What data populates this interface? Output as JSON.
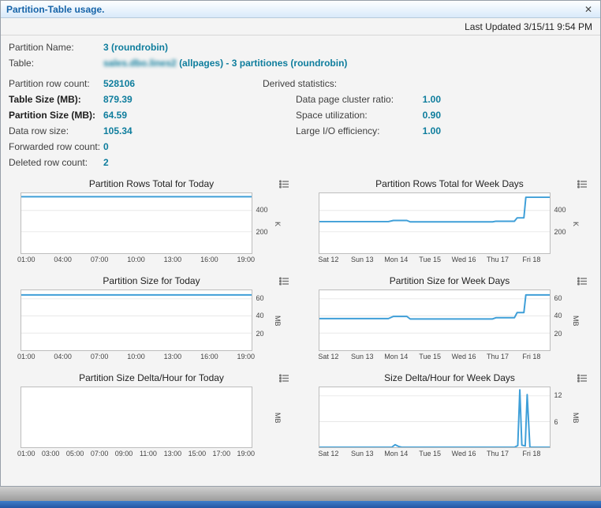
{
  "window": {
    "title": "Partition-Table usage.",
    "close": "✕",
    "last_updated": "Last Updated 3/15/11 9:54 PM"
  },
  "colors": {
    "title_blue": "#1563a8",
    "value_teal": "#0e7d9d",
    "chart_line": "#3f9fd8"
  },
  "icons": {
    "close": "x-close",
    "chart_menu": "list-menu"
  },
  "fields": {
    "partition_name": {
      "label": "Partition Name:",
      "value": "3 (roundrobin)"
    },
    "table": {
      "label": "Table:",
      "value_obscured": "sales.dbo.lines2",
      "value_rest": "(allpages) - 3 partitiones (roundrobin)"
    },
    "partition_row_count": {
      "label": "Partition row count:",
      "value": "528106"
    },
    "table_size": {
      "label": "Table Size (MB):",
      "value": "879.39"
    },
    "partition_size": {
      "label": "Partition Size (MB):",
      "value": "64.59"
    },
    "data_row_size": {
      "label": "Data row size:",
      "value": "105.34"
    },
    "forwarded_row_count": {
      "label": "Forwarded row count:",
      "value": "0"
    },
    "deleted_row_count": {
      "label": "Deleted row count:",
      "value": "2"
    }
  },
  "derived": {
    "heading": "Derived statistics:",
    "items": [
      {
        "label": "Data page cluster ratio:",
        "value": "1.00"
      },
      {
        "label": "Space utilization:",
        "value": "0.90"
      },
      {
        "label": "Large I/O efficiency:",
        "value": "1.00"
      }
    ]
  },
  "chart_data": [
    {
      "type": "line",
      "title": "Partition Rows Total for Today",
      "unit": "K",
      "xlim": [
        0.5,
        19.5
      ],
      "ylim": [
        0,
        560
      ],
      "yticks": [
        200,
        400
      ],
      "xticks": {
        "values": [
          1,
          4,
          7,
          10,
          13,
          16,
          19
        ],
        "labels": [
          "01:00",
          "04:00",
          "07:00",
          "10:00",
          "13:00",
          "16:00",
          "19:00"
        ]
      },
      "series": [
        {
          "name": "partition_rows_thousands",
          "points": [
            [
              0.5,
              528
            ],
            [
              19.5,
              528
            ]
          ]
        }
      ]
    },
    {
      "type": "line",
      "title": "Partition Rows Total for Week Days",
      "unit": "K",
      "xlim": [
        -0.3,
        6.55
      ],
      "ylim": [
        0,
        560
      ],
      "yticks": [
        200,
        400
      ],
      "xticks": {
        "values": [
          0,
          1,
          2,
          3,
          4,
          5,
          6
        ],
        "labels": [
          "Sat 12",
          "Sun 13",
          "Mon 14",
          "Tue 15",
          "Wed 16",
          "Thu 17",
          "Fri 18"
        ]
      },
      "series": [
        {
          "name": "partition_rows_thousands",
          "points": [
            [
              -0.3,
              295
            ],
            [
              1.75,
              295
            ],
            [
              1.9,
              306
            ],
            [
              2.3,
              306
            ],
            [
              2.4,
              293
            ],
            [
              4.85,
              293
            ],
            [
              4.95,
              299
            ],
            [
              5.5,
              299
            ],
            [
              5.58,
              330
            ],
            [
              5.78,
              330
            ],
            [
              5.84,
              523
            ],
            [
              6.55,
              523
            ]
          ]
        }
      ]
    },
    {
      "type": "line",
      "title": "Partition Size for Today",
      "unit": "MB",
      "xlim": [
        0.5,
        19.5
      ],
      "ylim": [
        0,
        70
      ],
      "yticks": [
        20,
        40,
        60
      ],
      "xticks": {
        "values": [
          1,
          4,
          7,
          10,
          13,
          16,
          19
        ],
        "labels": [
          "01:00",
          "04:00",
          "07:00",
          "10:00",
          "13:00",
          "16:00",
          "19:00"
        ]
      },
      "series": [
        {
          "name": "partition_size_mb",
          "points": [
            [
              0.5,
              64.6
            ],
            [
              19.5,
              64.6
            ]
          ]
        }
      ]
    },
    {
      "type": "line",
      "title": "Partition Size for Week Days",
      "unit": "MB",
      "xlim": [
        -0.3,
        6.55
      ],
      "ylim": [
        0,
        70
      ],
      "yticks": [
        20,
        40,
        60
      ],
      "xticks": {
        "values": [
          0,
          1,
          2,
          3,
          4,
          5,
          6
        ],
        "labels": [
          "Sat 12",
          "Sun 13",
          "Mon 14",
          "Tue 15",
          "Wed 16",
          "Thu 17",
          "Fri 18"
        ]
      },
      "series": [
        {
          "name": "partition_size_mb",
          "points": [
            [
              -0.3,
              37
            ],
            [
              1.75,
              37
            ],
            [
              1.9,
              39.5
            ],
            [
              2.3,
              39.5
            ],
            [
              2.4,
              36.5
            ],
            [
              4.85,
              36.5
            ],
            [
              4.95,
              38
            ],
            [
              5.5,
              38
            ],
            [
              5.58,
              44
            ],
            [
              5.78,
              44
            ],
            [
              5.84,
              64.6
            ],
            [
              6.55,
              64.6
            ]
          ]
        }
      ]
    },
    {
      "type": "line",
      "title": "Partition Size Delta/Hour for Today",
      "unit": "MB",
      "xlim": [
        0.5,
        19.5
      ],
      "ylim": [
        0,
        14
      ],
      "yticks": [],
      "xticks": {
        "values": [
          1,
          3,
          5,
          7,
          9,
          11,
          13,
          15,
          17,
          19
        ],
        "labels": [
          "01:00",
          "03:00",
          "05:00",
          "07:00",
          "09:00",
          "11:00",
          "13:00",
          "15:00",
          "17:00",
          "19:00"
        ]
      },
      "series": [
        {
          "name": "size_delta_mb",
          "points": []
        }
      ]
    },
    {
      "type": "line",
      "title": "Size Delta/Hour for Week Days",
      "unit": "MB",
      "xlim": [
        -0.3,
        6.55
      ],
      "ylim": [
        0,
        14
      ],
      "yticks": [
        6,
        12
      ],
      "xticks": {
        "values": [
          0,
          1,
          2,
          3,
          4,
          5,
          6
        ],
        "labels": [
          "Sat 12",
          "Sun 13",
          "Mon 14",
          "Tue 15",
          "Wed 16",
          "Thu 17",
          "Fri 18"
        ]
      },
      "series": [
        {
          "name": "size_delta_mb",
          "points": [
            [
              -0.3,
              0
            ],
            [
              1.85,
              0
            ],
            [
              1.95,
              0.6
            ],
            [
              2.05,
              0.2
            ],
            [
              2.15,
              0
            ],
            [
              5.5,
              0
            ],
            [
              5.6,
              0.4
            ],
            [
              5.66,
              13.4
            ],
            [
              5.72,
              0.5
            ],
            [
              5.82,
              0.3
            ],
            [
              5.88,
              12.3
            ],
            [
              5.96,
              0
            ],
            [
              6.55,
              0
            ]
          ]
        }
      ]
    }
  ]
}
